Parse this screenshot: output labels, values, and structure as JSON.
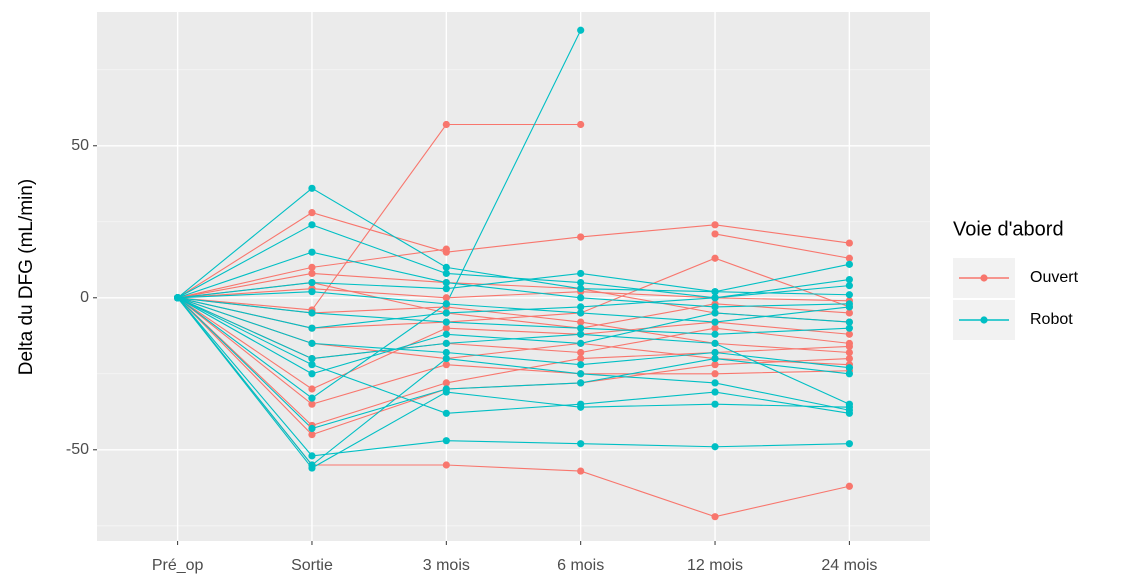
{
  "chart_data": {
    "type": "line",
    "ylabel": "Delta du DFG (mL/min)",
    "legend_title": "Voie d'abord",
    "legend": "right",
    "categories": [
      "Pré_op",
      "Sortie",
      "3 mois",
      "6 mois",
      "12 mois",
      "24 mois"
    ],
    "ylim": [
      -80,
      94
    ],
    "yticks": [
      -50,
      0,
      50
    ],
    "minor_yticks": [
      -75,
      -25,
      25,
      75
    ],
    "grid": true,
    "series": [
      {
        "name": "Ouvert",
        "color": "#F8766D",
        "values": [
          [
            0,
            -55,
            -55,
            -57,
            -72,
            -62
          ],
          [
            0,
            -4,
            57,
            57,
            null,
            null
          ],
          [
            0,
            28,
            15,
            20,
            24,
            18
          ],
          [
            0,
            10,
            16,
            null,
            21,
            13
          ],
          [
            0,
            -45,
            -30,
            -28,
            -22,
            -20
          ],
          [
            0,
            -35,
            -22,
            -25,
            -25,
            -24
          ],
          [
            0,
            5,
            -5,
            -10,
            -2,
            -5
          ],
          [
            0,
            -10,
            -8,
            -5,
            13,
            -3
          ],
          [
            0,
            -20,
            -15,
            -18,
            -10,
            -15
          ],
          [
            0,
            -30,
            -10,
            -12,
            -8,
            -12
          ],
          [
            0,
            3,
            0,
            2,
            0,
            -1
          ],
          [
            0,
            -15,
            -20,
            -15,
            -20,
            -22
          ],
          [
            0,
            8,
            5,
            3,
            -5,
            -8
          ],
          [
            0,
            -42,
            -28,
            -20,
            -18,
            -16
          ],
          [
            0,
            -5,
            -3,
            -8,
            -15,
            -18
          ]
        ]
      },
      {
        "name": "Robot",
        "color": "#00BFC4",
        "values": [
          [
            0,
            -52,
            -47,
            -48,
            -49,
            -48
          ],
          [
            0,
            -56,
            -31,
            -36,
            -35,
            -36
          ],
          [
            0,
            36,
            10,
            3,
            2,
            11
          ],
          [
            0,
            24,
            8,
            5,
            0,
            4
          ],
          [
            0,
            15,
            5,
            0,
            -3,
            -2
          ],
          [
            0,
            -22,
            -38,
            -35,
            -31,
            -38
          ],
          [
            0,
            -33,
            -2,
            88,
            null,
            null
          ],
          [
            0,
            -43,
            -30,
            -28,
            -20,
            -25
          ],
          [
            0,
            -25,
            -12,
            -15,
            -5,
            -8
          ],
          [
            0,
            -10,
            -5,
            -3,
            0,
            6
          ],
          [
            0,
            -5,
            -8,
            -10,
            -12,
            -10
          ],
          [
            0,
            5,
            3,
            8,
            2,
            1
          ],
          [
            0,
            -15,
            -18,
            -22,
            -18,
            -23
          ],
          [
            0,
            -55,
            -20,
            -25,
            -28,
            -37
          ],
          [
            0,
            2,
            -2,
            -5,
            -8,
            -3
          ],
          [
            0,
            -20,
            -15,
            -12,
            -15,
            -35
          ]
        ]
      }
    ]
  }
}
